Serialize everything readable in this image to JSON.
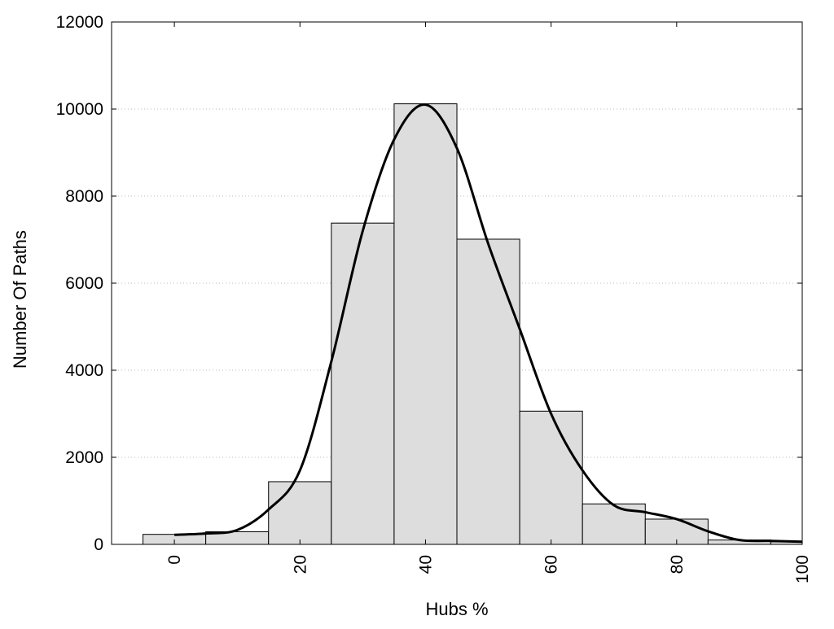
{
  "chart_data": {
    "type": "bar",
    "title": "",
    "xlabel": "Hubs %",
    "ylabel": "Number Of Paths",
    "xlim": [
      -10,
      100
    ],
    "ylim": [
      0,
      12000
    ],
    "x_ticks": [
      "0",
      "20",
      "40",
      "60",
      "80",
      "100"
    ],
    "y_ticks": [
      "0",
      "2000",
      "4000",
      "6000",
      "8000",
      "10000",
      "12000"
    ],
    "grid": "horizontal dotted",
    "legend": "none",
    "bin_width": 10,
    "categories": [
      0,
      10,
      20,
      30,
      40,
      50,
      60,
      70,
      80,
      90,
      100
    ],
    "values": [
      230,
      290,
      1440,
      7380,
      10120,
      7010,
      3060,
      930,
      580,
      100,
      60
    ],
    "bar_color": "#dddddd",
    "bar_edge_color": "#000000",
    "curve": {
      "x": [
        0,
        5,
        10,
        15,
        20,
        25,
        30,
        35,
        40,
        45,
        50,
        55,
        60,
        65,
        70,
        75,
        80,
        85,
        90,
        95,
        100
      ],
      "y": [
        220,
        250,
        330,
        800,
        1700,
        4200,
        7200,
        9300,
        10100,
        9100,
        6900,
        4950,
        3000,
        1700,
        900,
        740,
        580,
        300,
        100,
        80,
        60
      ],
      "color": "#000000"
    }
  }
}
